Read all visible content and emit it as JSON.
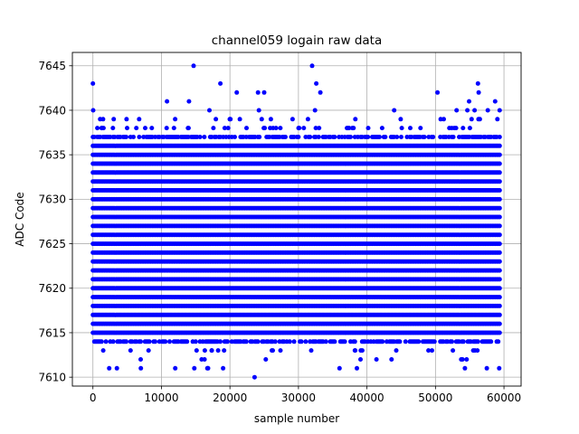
{
  "chart_data": {
    "type": "scatter",
    "title": "channel059 logain raw data",
    "xlabel": "sample number",
    "ylabel": "ADC Code",
    "xlim": [
      -3000,
      62500
    ],
    "ylim": [
      7609,
      7646.5
    ],
    "xticks": [
      0,
      10000,
      20000,
      30000,
      40000,
      50000,
      60000
    ],
    "yticks": [
      7610,
      7615,
      7620,
      7625,
      7630,
      7635,
      7640,
      7645
    ],
    "grid": true,
    "marker_color": "#0000ff",
    "sample_count": 59500,
    "dense_band": [
      7614,
      7637
    ],
    "sparse_levels": [
      {
        "y": 7613,
        "density": 0.012
      },
      {
        "y": 7612,
        "density": 0.005
      },
      {
        "y": 7611,
        "density": 0.002
      },
      {
        "y": 7638,
        "density": 0.022
      },
      {
        "y": 7639,
        "density": 0.011
      },
      {
        "y": 7640,
        "density": 0.005
      },
      {
        "y": 7641,
        "density": 0.002
      }
    ],
    "outliers": [
      {
        "x": 0,
        "y": 7643
      },
      {
        "x": 14700,
        "y": 7645
      },
      {
        "x": 18600,
        "y": 7643
      },
      {
        "x": 32000,
        "y": 7645
      },
      {
        "x": 32600,
        "y": 7643
      },
      {
        "x": 56200,
        "y": 7643
      },
      {
        "x": 21000,
        "y": 7642
      },
      {
        "x": 24100,
        "y": 7642
      },
      {
        "x": 25000,
        "y": 7642
      },
      {
        "x": 33200,
        "y": 7642
      },
      {
        "x": 50300,
        "y": 7642
      },
      {
        "x": 56300,
        "y": 7642
      },
      {
        "x": 23600,
        "y": 7610
      },
      {
        "x": 3500,
        "y": 7611
      },
      {
        "x": 7000,
        "y": 7611
      },
      {
        "x": 14800,
        "y": 7611
      },
      {
        "x": 16700,
        "y": 7611
      },
      {
        "x": 19000,
        "y": 7611
      },
      {
        "x": 36000,
        "y": 7611
      },
      {
        "x": 54300,
        "y": 7611
      },
      {
        "x": 57500,
        "y": 7611
      },
      {
        "x": 59300,
        "y": 7611
      }
    ]
  }
}
